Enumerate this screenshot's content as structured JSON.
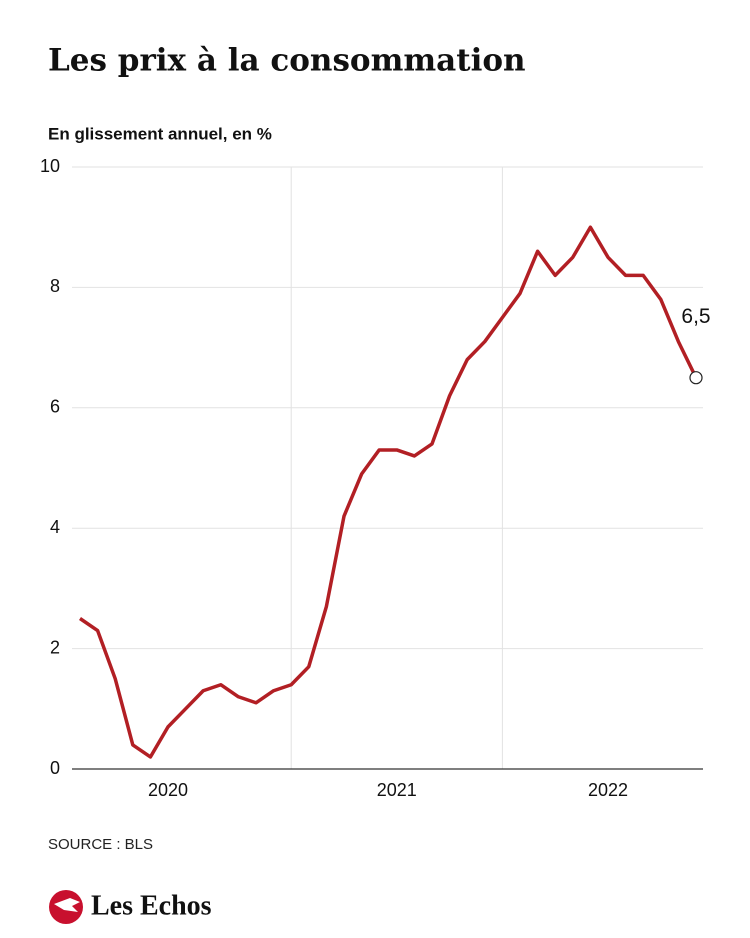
{
  "header": {
    "title": "Les prix à la consommation",
    "subtitle": "En glissement annuel, en %"
  },
  "chart_data": {
    "type": "line",
    "categories": [
      null,
      null,
      null,
      null,
      null,
      "2020",
      null,
      null,
      null,
      null,
      null,
      null,
      null,
      null,
      null,
      null,
      null,
      null,
      "2021",
      null,
      null,
      null,
      null,
      null,
      null,
      null,
      null,
      null,
      null,
      null,
      "2022",
      null,
      null,
      null,
      null,
      null
    ],
    "series": [
      {
        "name": null,
        "color": "#b21f24",
        "values": [
          2.5,
          2.3,
          1.5,
          0.4,
          0.2,
          0.7,
          1.0,
          1.3,
          1.4,
          1.2,
          1.1,
          1.3,
          1.4,
          1.7,
          2.7,
          4.2,
          4.9,
          5.3,
          5.3,
          5.2,
          5.4,
          6.2,
          6.8,
          7.1,
          7.5,
          7.9,
          8.6,
          8.2,
          8.5,
          9.0,
          8.5,
          8.2,
          8.2,
          7.8,
          7.1,
          6.5
        ],
        "value_labels": [
          null,
          null,
          null,
          null,
          null,
          null,
          null,
          null,
          null,
          null,
          null,
          null,
          null,
          null,
          null,
          null,
          null,
          null,
          null,
          null,
          null,
          null,
          null,
          null,
          null,
          null,
          null,
          null,
          null,
          null,
          null,
          null,
          null,
          null,
          null,
          "6,5"
        ]
      }
    ],
    "ylim": [
      0,
      10
    ],
    "yticks": [
      0,
      2,
      4,
      6,
      8,
      10
    ],
    "grid": true
  },
  "footer": {
    "source": "SOURCE : BLS",
    "brand": "Les Echos"
  }
}
